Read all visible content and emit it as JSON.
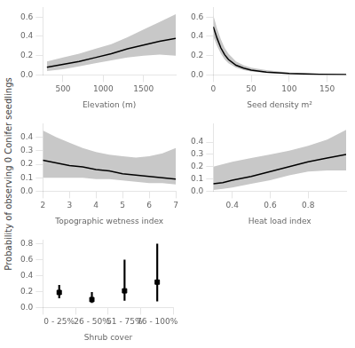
{
  "ylabel": "Probability of observing 0 Conifer seedlings",
  "chart_data": [
    {
      "type": "line",
      "xlabel": "Elevation (m)",
      "x": [
        300,
        500,
        700,
        900,
        1100,
        1300,
        1500,
        1700,
        1900
      ],
      "series": [
        {
          "type": "band",
          "color": "#c8c8c8",
          "low": [
            0.04,
            0.06,
            0.09,
            0.12,
            0.15,
            0.18,
            0.2,
            0.21,
            0.2
          ],
          "high": [
            0.14,
            0.18,
            0.22,
            0.27,
            0.32,
            0.39,
            0.47,
            0.55,
            0.63
          ]
        },
        {
          "type": "line",
          "color": "black",
          "values": [
            0.08,
            0.11,
            0.14,
            0.18,
            0.22,
            0.27,
            0.31,
            0.35,
            0.38
          ]
        }
      ],
      "xlim": [
        250,
        1900
      ],
      "ylim": [
        0.0,
        0.7
      ],
      "xticks": [
        500,
        1000,
        1500
      ],
      "yticks": [
        {
          "value": 0.0,
          "label": "0.0"
        },
        0.2,
        0.4,
        0.6
      ],
      "grid": false,
      "legend": "none"
    },
    {
      "type": "line",
      "xlabel": "Seed density m²",
      "x": [
        0,
        5,
        10,
        15,
        20,
        30,
        40,
        50,
        70,
        100,
        140,
        175
      ],
      "series": [
        {
          "type": "band",
          "color": "#c8c8c8",
          "low": [
            0.4,
            0.3,
            0.22,
            0.16,
            0.12,
            0.075,
            0.05,
            0.035,
            0.02,
            0.009,
            0.004,
            0.002
          ],
          "high": [
            0.62,
            0.48,
            0.37,
            0.28,
            0.22,
            0.14,
            0.1,
            0.075,
            0.05,
            0.025,
            0.013,
            0.008
          ]
        },
        {
          "type": "line",
          "color": "black",
          "values": [
            0.5,
            0.38,
            0.28,
            0.21,
            0.16,
            0.1,
            0.07,
            0.05,
            0.03,
            0.015,
            0.007,
            0.004
          ]
        }
      ],
      "xlim": [
        0,
        175
      ],
      "ylim": [
        0.0,
        0.7
      ],
      "xticks": [
        0,
        50,
        100,
        150
      ],
      "yticks": [
        {
          "value": 0.0,
          "label": "0.0"
        },
        0.2,
        0.4,
        0.6
      ],
      "grid": false,
      "legend": "none"
    },
    {
      "type": "line",
      "xlabel": "Topographic wetness index",
      "x": [
        2.0,
        2.5,
        3.0,
        3.5,
        4.0,
        4.5,
        5.0,
        5.5,
        6.0,
        6.5,
        7.0
      ],
      "series": [
        {
          "type": "band",
          "color": "#c8c8c8",
          "low": [
            0.1,
            0.1,
            0.1,
            0.1,
            0.09,
            0.09,
            0.08,
            0.07,
            0.06,
            0.06,
            0.05
          ],
          "high": [
            0.45,
            0.4,
            0.36,
            0.32,
            0.29,
            0.27,
            0.26,
            0.25,
            0.26,
            0.28,
            0.32
          ]
        },
        {
          "type": "line",
          "color": "black",
          "values": [
            0.23,
            0.21,
            0.19,
            0.18,
            0.16,
            0.15,
            0.13,
            0.12,
            0.11,
            0.1,
            0.09
          ]
        }
      ],
      "xlim": [
        2,
        7
      ],
      "ylim": [
        0.0,
        0.5
      ],
      "xticks": [
        2,
        3,
        4,
        5,
        6,
        7
      ],
      "yticks": [
        {
          "value": 0.0,
          "label": "0.0"
        },
        0.1,
        0.2,
        0.3,
        0.4
      ],
      "grid": false,
      "legend": "none"
    },
    {
      "type": "line",
      "xlabel": "Heat load index",
      "x": [
        0.3,
        0.35,
        0.4,
        0.5,
        0.6,
        0.7,
        0.8,
        0.9,
        1.0
      ],
      "series": [
        {
          "type": "band",
          "color": "#c8c8c8",
          "low": [
            0.01,
            0.02,
            0.03,
            0.06,
            0.09,
            0.13,
            0.16,
            0.17,
            0.17
          ],
          "high": [
            0.2,
            0.22,
            0.24,
            0.27,
            0.3,
            0.33,
            0.37,
            0.42,
            0.5
          ]
        },
        {
          "type": "line",
          "color": "black",
          "values": [
            0.06,
            0.07,
            0.09,
            0.12,
            0.16,
            0.2,
            0.24,
            0.27,
            0.3
          ]
        }
      ],
      "xlim": [
        0.3,
        1.0
      ],
      "ylim": [
        0.0,
        0.55
      ],
      "xticks": [
        0.4,
        0.6,
        0.8
      ],
      "yticks": [
        {
          "value": 0.0,
          "label": "0.0"
        },
        0.1,
        0.2,
        0.3,
        0.4
      ],
      "grid": false,
      "legend": "none"
    },
    {
      "type": "scatter",
      "xlabel": "Shrub cover",
      "categories": [
        "0 - 25%",
        "26 - 50%",
        "51 - 75%",
        "76 - 100%"
      ],
      "series": [
        {
          "type": "scatter",
          "color": "black",
          "marker": "square",
          "values": [
            0.19,
            0.1,
            0.21,
            0.32
          ],
          "low": [
            0.12,
            0.06,
            0.09,
            0.08
          ],
          "high": [
            0.28,
            0.19,
            0.6,
            0.8
          ]
        }
      ],
      "ylim": [
        0.0,
        0.85
      ],
      "yticks": [
        {
          "value": 0.0,
          "label": "0.0"
        },
        0.2,
        0.4,
        0.6,
        0.8
      ],
      "grid": false,
      "legend": "none"
    }
  ]
}
